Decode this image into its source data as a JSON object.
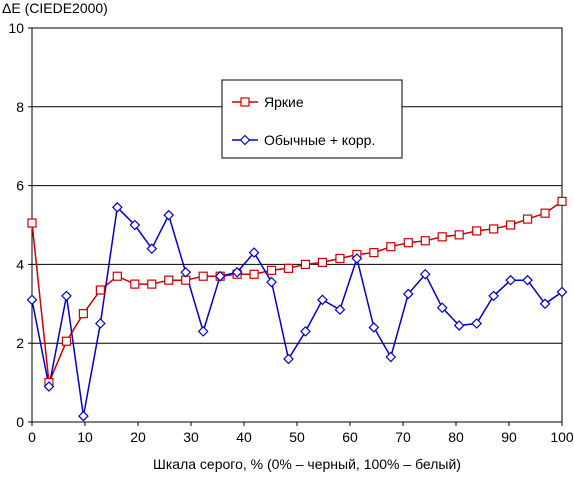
{
  "chart_data": {
    "type": "line",
    "ylabel": "ΔE (CIEDE2000)",
    "xlabel": "Шкала серого, % (0% – черный, 100% – белый)",
    "xlim": [
      0,
      100
    ],
    "ylim": [
      0,
      10
    ],
    "x_ticks": [
      0,
      10,
      20,
      30,
      40,
      50,
      60,
      70,
      80,
      90,
      100
    ],
    "y_ticks": [
      0,
      2,
      4,
      6,
      8,
      10
    ],
    "grid": "horizontal",
    "legend_position": "upper-center",
    "x": [
      0,
      3.2,
      6.5,
      9.7,
      12.9,
      16.1,
      19.4,
      22.6,
      25.8,
      29,
      32.3,
      35.5,
      38.7,
      41.9,
      45.2,
      48.4,
      51.6,
      54.8,
      58.1,
      61.3,
      64.5,
      67.7,
      71,
      74.2,
      77.4,
      80.6,
      83.9,
      87.1,
      90.3,
      93.5,
      96.8,
      100
    ],
    "series": [
      {
        "name": "Яркие",
        "color": "#cc0000",
        "marker": "square",
        "values": [
          5.05,
          1.0,
          2.05,
          2.75,
          3.35,
          3.7,
          3.5,
          3.5,
          3.6,
          3.6,
          3.7,
          3.7,
          3.75,
          3.75,
          3.85,
          3.9,
          4.0,
          4.05,
          4.15,
          4.25,
          4.3,
          4.45,
          4.55,
          4.6,
          4.7,
          4.75,
          4.85,
          4.9,
          5.0,
          5.15,
          5.3,
          5.6
        ]
      },
      {
        "name": "Обычные + корр.",
        "color": "#0000cc",
        "marker": "diamond",
        "values": [
          3.1,
          0.9,
          3.2,
          0.15,
          2.5,
          5.45,
          5.0,
          4.4,
          5.25,
          3.8,
          2.3,
          3.7,
          3.8,
          4.3,
          3.55,
          1.6,
          2.3,
          3.1,
          2.85,
          4.15,
          2.4,
          1.65,
          3.25,
          3.75,
          2.9,
          2.45,
          2.5,
          3.2,
          3.6,
          3.6,
          3.0,
          3.3
        ]
      }
    ]
  }
}
